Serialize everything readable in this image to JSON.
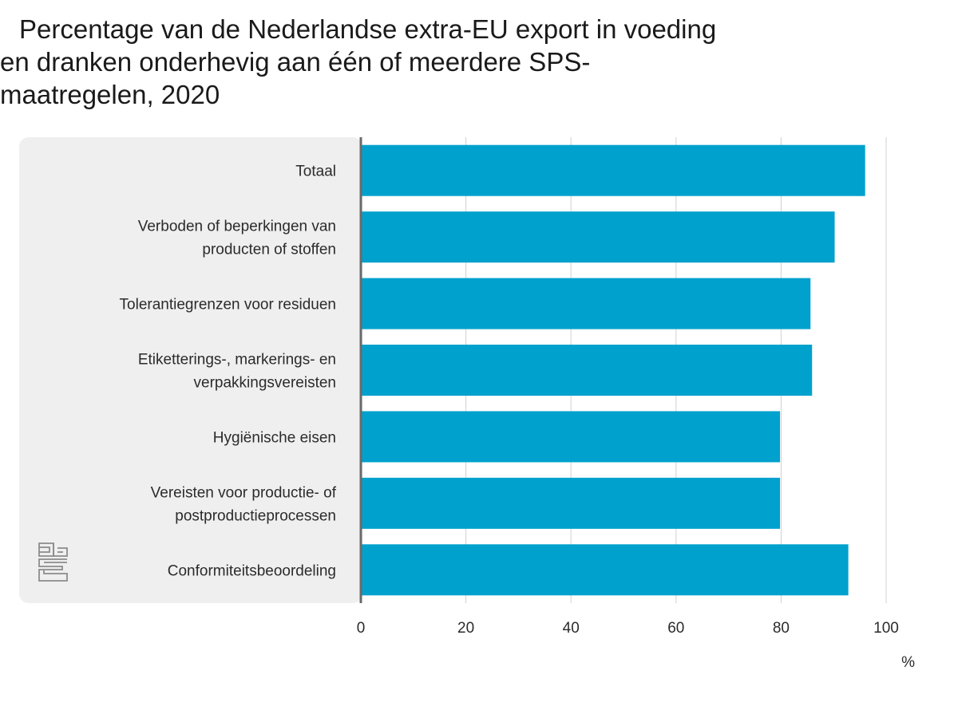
{
  "chart_data": {
    "type": "bar",
    "orientation": "horizontal",
    "title": "Percentage van de Nederlandse extra-EU export in voeding en dranken onderhevig aan één of meerdere SPS-maatregelen, 2020",
    "categories": [
      [
        "Totaal"
      ],
      [
        "Verboden of beperkingen van",
        "producten of stoffen"
      ],
      [
        "Tolerantiegrenzen voor residuen"
      ],
      [
        "Etiketterings-, markerings- en",
        "verpakkingsvereisten"
      ],
      [
        "Hygiënische eisen"
      ],
      [
        "Vereisten voor productie- of",
        "postproductieprocessen"
      ],
      [
        "Conformiteitsbeoordeling"
      ]
    ],
    "values": [
      96,
      90.2,
      85.6,
      85.9,
      79.8,
      79.8,
      92.8
    ],
    "xlim": [
      0,
      100
    ],
    "xticks": [
      0,
      20,
      40,
      60,
      80,
      100
    ],
    "xunit": "%",
    "grid": true,
    "bar_color": "#00a1cd"
  },
  "logo": {
    "icon": "cbs-logo-icon",
    "text": "cbs"
  }
}
